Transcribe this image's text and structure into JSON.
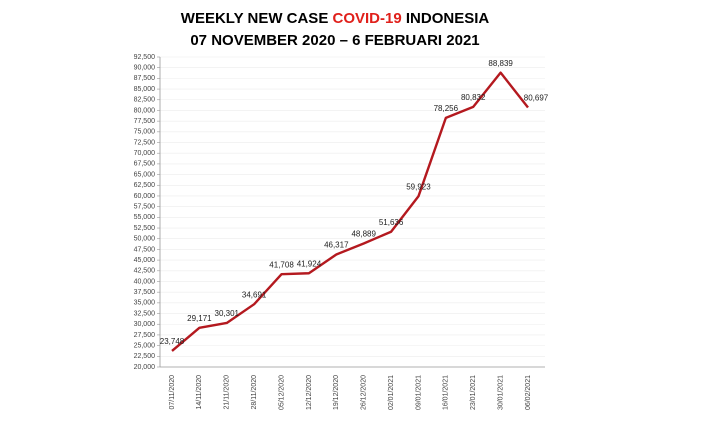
{
  "chart_data": {
    "type": "line",
    "title": [
      {
        "text": "WEEKLY NEW CASE ",
        "color": "#000000"
      },
      {
        "text": "COVID-19",
        "color": "#e0201b"
      },
      {
        "text": " INDONESIA",
        "color": "#000000"
      }
    ],
    "subtitle": "07 NOVEMBER 2020 – 6 FEBRUARI 2021",
    "categories": [
      "07/11/2020",
      "14/11/2020",
      "21/11/2020",
      "28/11/2020",
      "05/12/2020",
      "12/12/2020",
      "19/12/2020",
      "26/12/2020",
      "02/01/2021",
      "09/01/2021",
      "16/01/2021",
      "23/01/2021",
      "30/01/2021",
      "06/02/2021"
    ],
    "series": [
      {
        "name": "Weekly new case",
        "color": "#b4191f",
        "values": [
          23748,
          29171,
          30301,
          34691,
          41708,
          41924,
          46317,
          48889,
          51636,
          59923,
          78256,
          80832,
          88839,
          80697
        ],
        "value_labels": [
          "23,748",
          "29,171",
          "30,301",
          "34,691",
          "41,708",
          "41,924",
          "46,317",
          "48,889",
          "51,636",
          "59,923",
          "78,256",
          "80,832",
          "88,839",
          "80,697"
        ]
      }
    ],
    "ylim": [
      20000,
      92500
    ],
    "yticks": [
      {
        "value": 20000,
        "label": "20,000"
      },
      {
        "value": 22500,
        "label": "22,500"
      },
      {
        "value": 25000,
        "label": "25,000"
      },
      {
        "value": 27500,
        "label": "27,500"
      },
      {
        "value": 30000,
        "label": "30,000"
      },
      {
        "value": 32500,
        "label": "32,500"
      },
      {
        "value": 35000,
        "label": "35,000"
      },
      {
        "value": 37500,
        "label": "37,500"
      },
      {
        "value": 40000,
        "label": "40,000"
      },
      {
        "value": 42500,
        "label": "42,500"
      },
      {
        "value": 45000,
        "label": "45,000"
      },
      {
        "value": 47500,
        "label": "47,500"
      },
      {
        "value": 50000,
        "label": "50,000"
      },
      {
        "value": 52500,
        "label": "52,500"
      },
      {
        "value": 55000,
        "label": "55,000"
      },
      {
        "value": 57500,
        "label": "57,500"
      },
      {
        "value": 60000,
        "label": "60,000"
      },
      {
        "value": 62500,
        "label": "62,500"
      },
      {
        "value": 65000,
        "label": "65,000"
      },
      {
        "value": 67500,
        "label": "67,500"
      },
      {
        "value": 70000,
        "label": "70,000"
      },
      {
        "value": 72500,
        "label": "72,500"
      },
      {
        "value": 75000,
        "label": "75,000"
      },
      {
        "value": 77500,
        "label": "77,500"
      },
      {
        "value": 80000,
        "label": "80,000"
      },
      {
        "value": 82500,
        "label": "82,500"
      },
      {
        "value": 85000,
        "label": "85,000"
      },
      {
        "value": 87500,
        "label": "87,500"
      },
      {
        "value": 90000,
        "label": "90,000"
      },
      {
        "value": 92500,
        "label": "92,500"
      }
    ],
    "grid": true
  }
}
